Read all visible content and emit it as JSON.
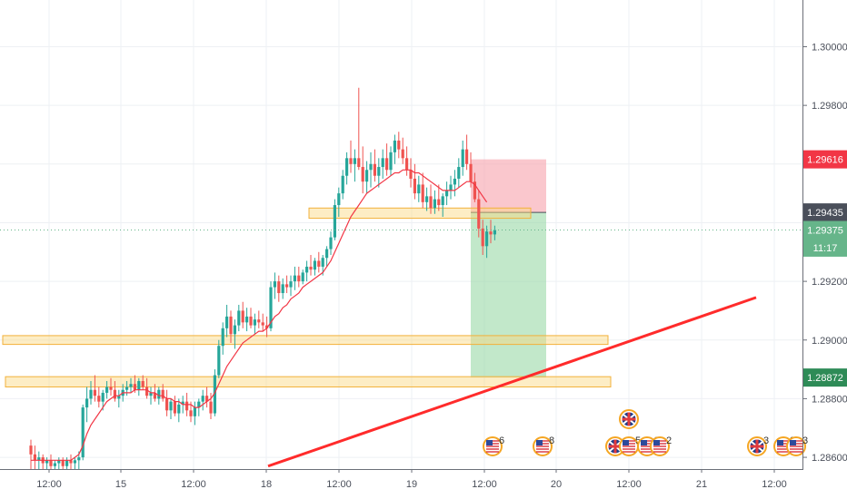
{
  "chart_data": {
    "type": "candlestick",
    "ylim": [
      1.2856,
      1.3015
    ],
    "y_ticks": [
      "1.30000",
      "1.29800",
      "1.29600",
      "1.29400",
      "1.29200",
      "1.29000",
      "1.28800",
      "1.28600"
    ],
    "x_ticks": [
      "12:00",
      "15",
      "12:00",
      "18",
      "12:00",
      "19",
      "12:00",
      "20",
      "12:00",
      "21",
      "12:00"
    ],
    "price_labels": [
      {
        "text": "1.29616",
        "value": 1.29616,
        "color": "#f23645"
      },
      {
        "text": "1.29435",
        "value": 1.29435,
        "color": "#4a4f5a"
      },
      {
        "text": "1.29375",
        "value": 1.29375,
        "color": "#66b58a"
      },
      {
        "text": "11:17",
        "value": 1.29315,
        "color": "#66b58a"
      },
      {
        "text": "1.28872",
        "value": 1.28872,
        "color": "#2e8b57"
      }
    ],
    "current_price": 1.29375,
    "zones": [
      {
        "from": 1.29415,
        "to": 1.2945,
        "color": "#fbd87f"
      },
      {
        "from": 1.28985,
        "to": 1.29015,
        "color": "#fbd87f"
      },
      {
        "from": 1.2884,
        "to": 1.28875,
        "color": "#fbd87f"
      }
    ],
    "position": {
      "entry": 1.29435,
      "stop": 1.29616,
      "target": 1.28872
    },
    "trendline": {
      "from": 1.2857,
      "to": 1.29145,
      "color": "#ff2b2b"
    },
    "moving_average_color": "#f23645",
    "up_color": "#26a69a",
    "down_color": "#ef5350",
    "candles": [
      [
        1.2864,
        1.2866,
        1.2856,
        1.2861
      ],
      [
        1.2861,
        1.2864,
        1.2856,
        1.2859
      ],
      [
        1.2859,
        1.2862,
        1.2856,
        1.286
      ],
      [
        1.286,
        1.2861,
        1.2856,
        1.2858
      ],
      [
        1.2858,
        1.286,
        1.2856,
        1.2859
      ],
      [
        1.2859,
        1.2861,
        1.2856,
        1.2857
      ],
      [
        1.2857,
        1.2859,
        1.2856,
        1.2858
      ],
      [
        1.2858,
        1.286,
        1.2856,
        1.2859
      ],
      [
        1.2859,
        1.286,
        1.2856,
        1.2857
      ],
      [
        1.2857,
        1.286,
        1.2856,
        1.2859
      ],
      [
        1.2859,
        1.2861,
        1.2856,
        1.2858
      ],
      [
        1.2858,
        1.286,
        1.2856,
        1.2859
      ],
      [
        1.2859,
        1.2862,
        1.2856,
        1.286
      ],
      [
        1.286,
        1.2878,
        1.2859,
        1.2877
      ],
      [
        1.2877,
        1.2884,
        1.2872,
        1.288
      ],
      [
        1.288,
        1.2886,
        1.2878,
        1.2883
      ],
      [
        1.2883,
        1.2888,
        1.2879,
        1.2881
      ],
      [
        1.2881,
        1.2884,
        1.2877,
        1.2879
      ],
      [
        1.2879,
        1.2883,
        1.2876,
        1.2882
      ],
      [
        1.2882,
        1.2886,
        1.288,
        1.2884
      ],
      [
        1.2884,
        1.2887,
        1.2881,
        1.2883
      ],
      [
        1.2883,
        1.2886,
        1.2879,
        1.288
      ],
      [
        1.288,
        1.2883,
        1.2877,
        1.2881
      ],
      [
        1.2881,
        1.2885,
        1.2879,
        1.2883
      ],
      [
        1.2883,
        1.2886,
        1.2881,
        1.2884
      ],
      [
        1.2884,
        1.2887,
        1.2882,
        1.2885
      ],
      [
        1.2885,
        1.2888,
        1.2882,
        1.2883
      ],
      [
        1.2883,
        1.2887,
        1.2881,
        1.2886
      ],
      [
        1.2886,
        1.2888,
        1.2883,
        1.2884
      ],
      [
        1.2884,
        1.2887,
        1.288,
        1.2881
      ],
      [
        1.2881,
        1.2884,
        1.2878,
        1.2882
      ],
      [
        1.2882,
        1.2885,
        1.2879,
        1.288
      ],
      [
        1.288,
        1.2884,
        1.2878,
        1.2883
      ],
      [
        1.2883,
        1.2885,
        1.2879,
        1.288
      ],
      [
        1.288,
        1.2883,
        1.2874,
        1.2876
      ],
      [
        1.2876,
        1.288,
        1.2873,
        1.2879
      ],
      [
        1.2879,
        1.2881,
        1.2874,
        1.2875
      ],
      [
        1.2875,
        1.288,
        1.2872,
        1.2878
      ],
      [
        1.2878,
        1.2881,
        1.2875,
        1.2879
      ],
      [
        1.2879,
        1.2882,
        1.2874,
        1.2876
      ],
      [
        1.2876,
        1.2879,
        1.2872,
        1.2874
      ],
      [
        1.2874,
        1.2879,
        1.2871,
        1.2877
      ],
      [
        1.2877,
        1.288,
        1.2874,
        1.2879
      ],
      [
        1.2879,
        1.2883,
        1.2876,
        1.2881
      ],
      [
        1.2881,
        1.2884,
        1.2877,
        1.2879
      ],
      [
        1.2879,
        1.2882,
        1.2873,
        1.2875
      ],
      [
        1.2875,
        1.289,
        1.2874,
        1.2888
      ],
      [
        1.2888,
        1.29,
        1.2887,
        1.2898
      ],
      [
        1.2898,
        1.2906,
        1.2895,
        1.2904
      ],
      [
        1.2904,
        1.2912,
        1.2901,
        1.2908
      ],
      [
        1.2908,
        1.291,
        1.2899,
        1.2902
      ],
      [
        1.2902,
        1.2907,
        1.2897,
        1.2905
      ],
      [
        1.2905,
        1.2912,
        1.2903,
        1.291
      ],
      [
        1.291,
        1.2913,
        1.2904,
        1.2906
      ],
      [
        1.2906,
        1.2911,
        1.2903,
        1.2908
      ],
      [
        1.2908,
        1.2911,
        1.2904,
        1.2905
      ],
      [
        1.2905,
        1.2909,
        1.2902,
        1.2907
      ],
      [
        1.2907,
        1.291,
        1.2904,
        1.2906
      ],
      [
        1.2906,
        1.2909,
        1.2903,
        1.2905
      ],
      [
        1.2905,
        1.2908,
        1.2901,
        1.2904
      ],
      [
        1.2904,
        1.292,
        1.2903,
        1.2918
      ],
      [
        1.2918,
        1.2923,
        1.2914,
        1.292
      ],
      [
        1.292,
        1.2922,
        1.2913,
        1.2916
      ],
      [
        1.2916,
        1.2921,
        1.2914,
        1.2919
      ],
      [
        1.2919,
        1.2922,
        1.2916,
        1.2918
      ],
      [
        1.2918,
        1.2922,
        1.2915,
        1.292
      ],
      [
        1.292,
        1.2925,
        1.2917,
        1.2922
      ],
      [
        1.2922,
        1.2925,
        1.2918,
        1.292
      ],
      [
        1.292,
        1.2924,
        1.2919,
        1.2923
      ],
      [
        1.2923,
        1.2927,
        1.292,
        1.2925
      ],
      [
        1.2925,
        1.2929,
        1.2922,
        1.2924
      ],
      [
        1.2924,
        1.2928,
        1.2922,
        1.2927
      ],
      [
        1.2927,
        1.293,
        1.2923,
        1.2925
      ],
      [
        1.2925,
        1.2929,
        1.2922,
        1.2928
      ],
      [
        1.2928,
        1.2932,
        1.2925,
        1.2931
      ],
      [
        1.2931,
        1.2937,
        1.2929,
        1.2935
      ],
      [
        1.2935,
        1.2948,
        1.2934,
        1.2946
      ],
      [
        1.2946,
        1.2952,
        1.2942,
        1.295
      ],
      [
        1.295,
        1.2958,
        1.2948,
        1.2956
      ],
      [
        1.2956,
        1.2964,
        1.2953,
        1.2962
      ],
      [
        1.2962,
        1.2968,
        1.2957,
        1.296
      ],
      [
        1.296,
        1.2965,
        1.2954,
        1.2962
      ],
      [
        1.2962,
        1.2986,
        1.2958,
        1.2959
      ],
      [
        1.2959,
        1.2966,
        1.295,
        1.2954
      ],
      [
        1.2954,
        1.2961,
        1.295,
        1.2958
      ],
      [
        1.2958,
        1.2964,
        1.2952,
        1.296
      ],
      [
        1.296,
        1.2965,
        1.2954,
        1.2956
      ],
      [
        1.2956,
        1.2962,
        1.2952,
        1.2959
      ],
      [
        1.2959,
        1.2965,
        1.2955,
        1.2962
      ],
      [
        1.2962,
        1.2967,
        1.2956,
        1.2958
      ],
      [
        1.2958,
        1.2966,
        1.2956,
        1.2964
      ],
      [
        1.2964,
        1.297,
        1.296,
        1.2968
      ],
      [
        1.2968,
        1.2971,
        1.2962,
        1.2965
      ],
      [
        1.2965,
        1.2969,
        1.296,
        1.2962
      ],
      [
        1.2962,
        1.2966,
        1.2956,
        1.2958
      ],
      [
        1.2958,
        1.2962,
        1.2952,
        1.2955
      ],
      [
        1.2955,
        1.296,
        1.2948,
        1.295
      ],
      [
        1.295,
        1.2956,
        1.2947,
        1.2953
      ],
      [
        1.2953,
        1.2957,
        1.2945,
        1.2947
      ],
      [
        1.2947,
        1.2952,
        1.2944,
        1.2949
      ],
      [
        1.2949,
        1.2953,
        1.2943,
        1.2945
      ],
      [
        1.2945,
        1.2951,
        1.2943,
        1.2948
      ],
      [
        1.2948,
        1.2953,
        1.2944,
        1.2946
      ],
      [
        1.2946,
        1.295,
        1.2942,
        1.2949
      ],
      [
        1.2949,
        1.2954,
        1.2946,
        1.2951
      ],
      [
        1.2951,
        1.2956,
        1.2948,
        1.2953
      ],
      [
        1.2953,
        1.2958,
        1.2949,
        1.2955
      ],
      [
        1.2955,
        1.2962,
        1.2952,
        1.2959
      ],
      [
        1.2959,
        1.2968,
        1.2956,
        1.2965
      ],
      [
        1.2965,
        1.297,
        1.2958,
        1.296
      ],
      [
        1.296,
        1.2964,
        1.2952,
        1.2954
      ],
      [
        1.2954,
        1.2957,
        1.2947,
        1.2948
      ],
      [
        1.2948,
        1.2951,
        1.2935,
        1.2938
      ],
      [
        1.2938,
        1.2941,
        1.2929,
        1.2932
      ],
      [
        1.2932,
        1.2939,
        1.2928,
        1.2937
      ],
      [
        1.2937,
        1.2941,
        1.2933,
        1.2936
      ],
      [
        1.2936,
        1.2939,
        1.2934,
        1.29375
      ]
    ],
    "moving_average": [
      1.2859,
      1.2859,
      1.2859,
      1.2859,
      1.2859,
      1.2859,
      1.2859,
      1.2859,
      1.2859,
      1.2859,
      1.2859,
      1.286,
      1.2861,
      1.2864,
      1.2868,
      1.2871,
      1.2873,
      1.2875,
      1.2877,
      1.2879,
      1.288,
      1.2881,
      1.2881,
      1.2882,
      1.2882,
      1.2882,
      1.2883,
      1.2883,
      1.2883,
      1.2883,
      1.2882,
      1.2882,
      1.2881,
      1.2881,
      1.288,
      1.288,
      1.2879,
      1.2879,
      1.2878,
      1.2878,
      1.2878,
      1.2877,
      1.2877,
      1.2878,
      1.2879,
      1.288,
      1.2882,
      1.2885,
      1.2888,
      1.2891,
      1.2893,
      1.2895,
      1.2897,
      1.2899,
      1.29,
      1.2901,
      1.2902,
      1.2903,
      1.2903,
      1.2904,
      1.2906,
      1.2908,
      1.2909,
      1.2911,
      1.2912,
      1.2914,
      1.2915,
      1.2916,
      1.2918,
      1.2919,
      1.292,
      1.2921,
      1.2922,
      1.2923,
      1.2925,
      1.2927,
      1.293,
      1.2933,
      1.2936,
      1.2939,
      1.2942,
      1.2944,
      1.2946,
      1.2948,
      1.295,
      1.2951,
      1.2952,
      1.2953,
      1.2954,
      1.2955,
      1.2956,
      1.2957,
      1.2957,
      1.2958,
      1.2958,
      1.2958,
      1.2957,
      1.2957,
      1.2956,
      1.2955,
      1.2954,
      1.2953,
      1.2952,
      1.2951,
      1.2951,
      1.2951,
      1.2951,
      1.2952,
      1.2953,
      1.2954,
      1.2954,
      1.2953,
      1.2951,
      1.2949,
      1.2947
    ],
    "event_markers": [
      {
        "flag": "us",
        "count": "6"
      },
      {
        "flag": "us",
        "count": "8"
      },
      {
        "flag": "uk",
        "count": ""
      },
      {
        "flag": "uk",
        "count": ""
      },
      {
        "flag": "us",
        "count": "5"
      },
      {
        "flag": "us",
        "count": "12"
      },
      {
        "flag": "us",
        "count": "2"
      },
      {
        "flag": "uk",
        "count": "3"
      },
      {
        "flag": "us",
        "count": "33"
      },
      {
        "flag": "us",
        "count": "3"
      }
    ]
  }
}
